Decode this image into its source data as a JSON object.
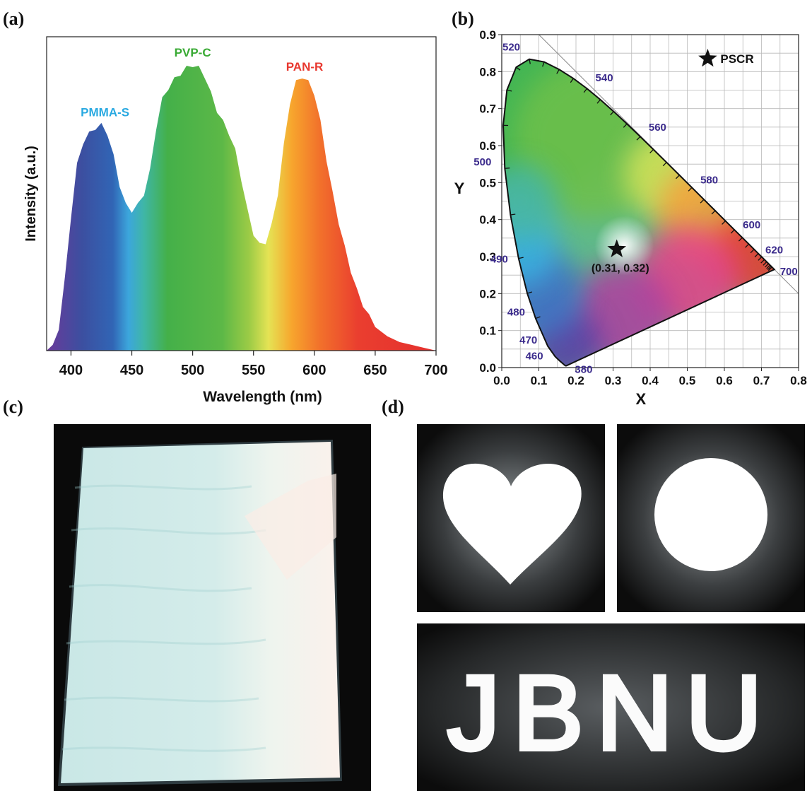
{
  "panels": {
    "a": "(a)",
    "b": "(b)",
    "c": "(c)",
    "d": "(d)"
  },
  "chart_data": [
    {
      "type": "area",
      "xlabel": "Wavelength (nm)",
      "ylabel": "Intensity (a.u.)",
      "xlim": [
        380,
        700
      ],
      "xticks": [
        400,
        450,
        500,
        550,
        600,
        650,
        700
      ],
      "ylim": [
        0,
        1.0
      ],
      "grid": false,
      "fill": "spectral-gradient",
      "series": [
        {
          "x": [
            380,
            385,
            390,
            395,
            400,
            405,
            410,
            415,
            420,
            425,
            430,
            435,
            440,
            445,
            450,
            455,
            460,
            465,
            470,
            475,
            480,
            485,
            490,
            495,
            500,
            505,
            510,
            515,
            520,
            525,
            530,
            535,
            540,
            545,
            550,
            555,
            560,
            565,
            570,
            575,
            580,
            585,
            590,
            595,
            600,
            605,
            610,
            615,
            620,
            625,
            630,
            635,
            640,
            645,
            650,
            660,
            670,
            680,
            690,
            700
          ],
          "values": [
            0.0,
            0.02,
            0.08,
            0.25,
            0.47,
            0.65,
            0.73,
            0.76,
            0.78,
            0.79,
            0.76,
            0.68,
            0.58,
            0.51,
            0.49,
            0.51,
            0.55,
            0.63,
            0.78,
            0.88,
            0.92,
            0.95,
            0.97,
            0.99,
            1.0,
            0.99,
            0.96,
            0.9,
            0.84,
            0.8,
            0.76,
            0.7,
            0.6,
            0.49,
            0.41,
            0.37,
            0.38,
            0.44,
            0.55,
            0.72,
            0.87,
            0.94,
            0.96,
            0.94,
            0.9,
            0.8,
            0.67,
            0.55,
            0.45,
            0.36,
            0.28,
            0.21,
            0.16,
            0.12,
            0.09,
            0.05,
            0.03,
            0.02,
            0.01,
            0.0
          ]
        }
      ],
      "annotations": [
        {
          "text": "PMMA-S",
          "x": 428,
          "y": 0.82,
          "color": "#29a9e1"
        },
        {
          "text": "PVP-C",
          "x": 500,
          "y": 1.03,
          "color": "#3aaa35"
        },
        {
          "text": "PAN-R",
          "x": 592,
          "y": 0.98,
          "color": "#e8382f"
        }
      ]
    },
    {
      "type": "scatter",
      "xlabel": "X",
      "ylabel": "Y",
      "xlim": [
        0.0,
        0.8
      ],
      "ylim": [
        0.0,
        0.9
      ],
      "xticks": [
        "0.0",
        "0.1",
        "0.2",
        "0.3",
        "0.4",
        "0.5",
        "0.6",
        "0.7",
        "0.8"
      ],
      "yticks": [
        "0.0",
        "0.1",
        "0.2",
        "0.3",
        "0.4",
        "0.5",
        "0.6",
        "0.7",
        "0.8",
        "0.9"
      ],
      "grid": true,
      "locus": {
        "x": [
          0.1741,
          0.1738,
          0.1733,
          0.1726,
          0.1714,
          0.1689,
          0.1644,
          0.1566,
          0.144,
          0.1241,
          0.0913,
          0.0687,
          0.0454,
          0.0235,
          0.0082,
          0.0039,
          0.0139,
          0.0389,
          0.0743,
          0.1142,
          0.1547,
          0.1929,
          0.2296,
          0.2658,
          0.3016,
          0.3373,
          0.3731,
          0.4087,
          0.4441,
          0.4788,
          0.5125,
          0.5448,
          0.5752,
          0.6029,
          0.627,
          0.6482,
          0.6658,
          0.6801,
          0.6915,
          0.7006,
          0.7079,
          0.714,
          0.719,
          0.723,
          0.726,
          0.7283,
          0.7347
        ],
        "y": [
          0.005,
          0.0049,
          0.0048,
          0.0048,
          0.0051,
          0.0069,
          0.0109,
          0.0177,
          0.0297,
          0.0578,
          0.1327,
          0.2007,
          0.295,
          0.4127,
          0.5384,
          0.6548,
          0.7502,
          0.812,
          0.8338,
          0.8262,
          0.8059,
          0.7816,
          0.7543,
          0.7243,
          0.6923,
          0.6589,
          0.6245,
          0.5896,
          0.5547,
          0.5202,
          0.4866,
          0.4544,
          0.4242,
          0.3965,
          0.3725,
          0.3514,
          0.334,
          0.3197,
          0.3083,
          0.2993,
          0.292,
          0.2859,
          0.2809,
          0.277,
          0.274,
          0.2717,
          0.2653
        ]
      },
      "wavelength_labels": [
        {
          "text": "380",
          "x": 0.1741,
          "y": 0.005
        },
        {
          "text": "460",
          "x": 0.144,
          "y": 0.0297
        },
        {
          "text": "470",
          "x": 0.1241,
          "y": 0.0578
        },
        {
          "text": "480",
          "x": 0.0913,
          "y": 0.1327
        },
        {
          "text": "490",
          "x": 0.0454,
          "y": 0.295
        },
        {
          "text": "500",
          "x": 0.0082,
          "y": 0.5384
        },
        {
          "text": "520",
          "x": 0.0743,
          "y": 0.8338
        },
        {
          "text": "540",
          "x": 0.2296,
          "y": 0.7543
        },
        {
          "text": "560",
          "x": 0.3731,
          "y": 0.6245
        },
        {
          "text": "580",
          "x": 0.5125,
          "y": 0.4866
        },
        {
          "text": "600",
          "x": 0.627,
          "y": 0.3725
        },
        {
          "text": "620",
          "x": 0.6915,
          "y": 0.3083
        },
        {
          "text": "700",
          "x": 0.7347,
          "y": 0.2653
        }
      ],
      "points": [
        {
          "x": 0.31,
          "y": 0.32,
          "label": "(0.31, 0.32)"
        }
      ],
      "legend": {
        "text": "PSCR",
        "placement": "top-right",
        "marker": "star"
      }
    }
  ],
  "photo_c": {
    "description_color": "#bfe3e3",
    "background": "#0a0a0a"
  },
  "photo_d": {
    "shapes": [
      "heart",
      "circle"
    ],
    "text": "JBNU"
  }
}
